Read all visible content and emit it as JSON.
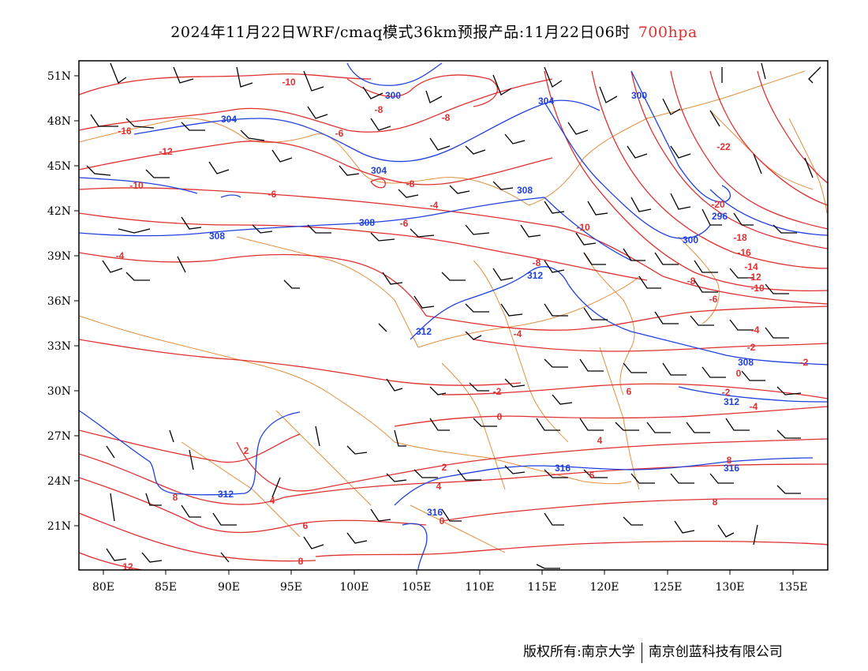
{
  "title": {
    "main": "2024年11月22日WRF/cmaq模式36km预报产品:11月22日06时",
    "level": "700hpa"
  },
  "footer": {
    "left": "版权所有:南京大学",
    "right": "南京创蓝科技有限公司"
  },
  "colors": {
    "temperature": "#e03030",
    "geopotential": "#2040e0",
    "border": "#e09040",
    "wind": "#000000"
  },
  "axes": {
    "lon_ticks": [
      "80E",
      "85E",
      "90E",
      "95E",
      "100E",
      "105E",
      "110E",
      "115E",
      "120E",
      "125E",
      "130E",
      "135E"
    ],
    "lat_ticks": [
      "51N",
      "48N",
      "45N",
      "42N",
      "39N",
      "36N",
      "33N",
      "30N",
      "27N",
      "24N",
      "21N"
    ]
  },
  "labels": {
    "geopotential": [
      "300",
      "304",
      "304",
      "300",
      "304",
      "308",
      "308",
      "308",
      "312",
      "312",
      "312",
      "296",
      "300",
      "308",
      "312",
      "316",
      "316",
      "316"
    ],
    "temperature": [
      "-10",
      "-16",
      "-12",
      "-10",
      "-8",
      "-8",
      "-6",
      "-8",
      "-6",
      "-4",
      "-4",
      "-6",
      "-22",
      "-20",
      "-18",
      "-16",
      "-14",
      "-12",
      "-10",
      "-8",
      "-6",
      "-4",
      "-2",
      "0",
      "-4",
      "-2",
      "0",
      "-2",
      "-4",
      "-2",
      "4",
      "4",
      "0",
      "2",
      "2",
      "4",
      "6",
      "6",
      "8",
      "8",
      "8",
      "6",
      "8",
      "12",
      "-10",
      "-8"
    ]
  }
}
